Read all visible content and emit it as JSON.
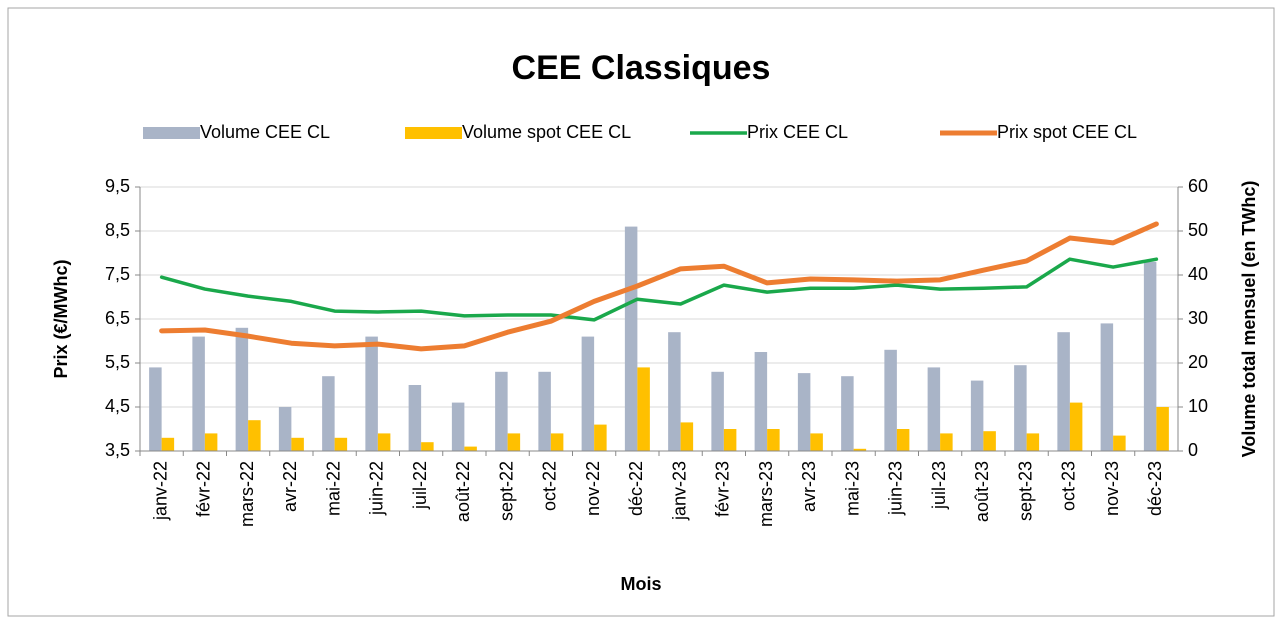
{
  "chart_data": {
    "type": "bar_line",
    "title": "CEE Classiques",
    "x_label": "Mois",
    "y_label": "Prix (€/MWhc)",
    "y2_label": "Volume total mensuel (en TWhc)",
    "categories": [
      "janv-22",
      "févr-22",
      "mars-22",
      "avr-22",
      "mai-22",
      "juin-22",
      "juil-22",
      "août-22",
      "sept-22",
      "oct-22",
      "nov-22",
      "déc-22",
      "janv-23",
      "févr-23",
      "mars-23",
      "avr-23",
      "mai-23",
      "juin-23",
      "juil-23",
      "août-23",
      "sept-23",
      "oct-23",
      "nov-23",
      "déc-23"
    ],
    "series": [
      {
        "name": "Volume CEE CL",
        "kind": "bar",
        "axis": "y2",
        "color": "#a9b4c7",
        "values": [
          19,
          26,
          28,
          10,
          17,
          26,
          15,
          11,
          18,
          18,
          26,
          51,
          27,
          18,
          22.5,
          17.7,
          17,
          23,
          19,
          16,
          19.5,
          27,
          29,
          43
        ]
      },
      {
        "name": "Volume spot CEE CL",
        "kind": "bar",
        "axis": "y2",
        "color": "#ffc000",
        "values": [
          3,
          4,
          7,
          3,
          3,
          4,
          2,
          1,
          4,
          4,
          6,
          19,
          6.5,
          5,
          5,
          4,
          0.5,
          5,
          4,
          4.5,
          4,
          11,
          3.5,
          10
        ]
      },
      {
        "name": "Prix CEE CL",
        "kind": "line",
        "color": "#1aa84b",
        "values": [
          7.45,
          7.18,
          7.02,
          6.9,
          6.68,
          6.66,
          6.68,
          6.57,
          6.59,
          6.59,
          6.48,
          6.95,
          6.84,
          7.27,
          7.11,
          7.2,
          7.2,
          7.27,
          7.18,
          7.2,
          7.23,
          7.86,
          7.68,
          7.86
        ]
      },
      {
        "name": "Prix spot CEE CL",
        "kind": "line",
        "color": "#ed7d31",
        "values": [
          6.23,
          6.25,
          6.11,
          5.95,
          5.89,
          5.93,
          5.82,
          5.89,
          6.2,
          6.45,
          6.9,
          7.25,
          7.64,
          7.7,
          7.32,
          7.41,
          7.39,
          7.36,
          7.39,
          7.61,
          7.82,
          8.34,
          8.23,
          8.66
        ]
      }
    ],
    "ylim": [
      3.5,
      9.5
    ],
    "yticks": [
      {
        "value": 3.5,
        "label": "3,5"
      },
      {
        "value": 4.5,
        "label": "4,5"
      },
      {
        "value": 5.5,
        "label": "5,5"
      },
      {
        "value": 6.5,
        "label": "6,5"
      },
      {
        "value": 7.5,
        "label": "7,5"
      },
      {
        "value": 8.5,
        "label": "8,5"
      },
      {
        "value": 9.5,
        "label": "9,5"
      }
    ],
    "y2lim": [
      0,
      60
    ],
    "y2ticks": [
      0,
      10,
      20,
      30,
      40,
      50,
      60
    ],
    "grid": true
  }
}
